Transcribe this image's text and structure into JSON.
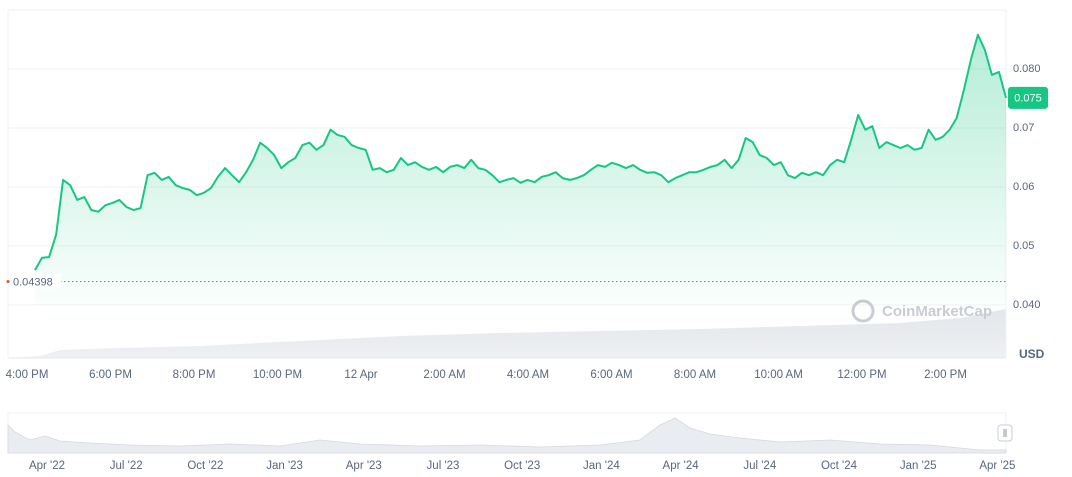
{
  "chart_data": {
    "type": "line",
    "x_labels": [
      "4:00 PM",
      "6:00 PM",
      "8:00 PM",
      "10:00 PM",
      "12 Apr",
      "2:00 AM",
      "4:00 AM",
      "6:00 AM",
      "8:00 AM",
      "10:00 AM",
      "12:00 PM",
      "2:00 PM"
    ],
    "series": [
      {
        "color": "#16c784",
        "values": [
          0.0459,
          0.048,
          0.0481,
          0.0519,
          0.0612,
          0.0603,
          0.0578,
          0.0583,
          0.0561,
          0.0558,
          0.0569,
          0.0573,
          0.0578,
          0.0566,
          0.0561,
          0.0564,
          0.062,
          0.0624,
          0.0612,
          0.0617,
          0.0603,
          0.0598,
          0.0595,
          0.0586,
          0.059,
          0.0598,
          0.0617,
          0.0632,
          0.062,
          0.0608,
          0.0625,
          0.0646,
          0.0675,
          0.0666,
          0.0654,
          0.0632,
          0.0642,
          0.0649,
          0.0671,
          0.0675,
          0.0663,
          0.0671,
          0.0697,
          0.0688,
          0.0685,
          0.0671,
          0.0666,
          0.0663,
          0.0629,
          0.0632,
          0.0625,
          0.0629,
          0.0649,
          0.0637,
          0.0642,
          0.0634,
          0.0629,
          0.0634,
          0.0625,
          0.0634,
          0.0637,
          0.0632,
          0.0646,
          0.0632,
          0.0629,
          0.062,
          0.0608,
          0.0612,
          0.0615,
          0.0607,
          0.0612,
          0.0608,
          0.0617,
          0.062,
          0.0625,
          0.0615,
          0.0612,
          0.0615,
          0.062,
          0.0629,
          0.0637,
          0.0634,
          0.0641,
          0.0637,
          0.0632,
          0.0637,
          0.0629,
          0.0624,
          0.0625,
          0.062,
          0.0608,
          0.0615,
          0.062,
          0.0625,
          0.0625,
          0.0629,
          0.0634,
          0.0637,
          0.0646,
          0.0632,
          0.0646,
          0.0683,
          0.0676,
          0.0654,
          0.0649,
          0.0637,
          0.0642,
          0.062,
          0.0615,
          0.0624,
          0.062,
          0.0625,
          0.062,
          0.0637,
          0.0646,
          0.0642,
          0.068,
          0.0722,
          0.0697,
          0.0703,
          0.0666,
          0.0676,
          0.0671,
          0.0666,
          0.0671,
          0.0663,
          0.0666,
          0.0697,
          0.068,
          0.0685,
          0.0697,
          0.0717,
          0.0764,
          0.0815,
          0.0858,
          0.0832,
          0.079,
          0.0795,
          0.0751
        ]
      }
    ],
    "ylim": [
      0.031,
      0.09
    ],
    "yticks": [
      {
        "value": 0.04,
        "label": "0.040"
      },
      0.05,
      0.06,
      0.07,
      {
        "value": 0.08,
        "label": "0.080"
      }
    ],
    "grid": true,
    "start_price": 0.04398,
    "last_price_label": "0.075",
    "currency": "USD",
    "watermark": "CoinMarketCap",
    "navigator_labels": [
      "Apr '22",
      "Jul '22",
      "Oct '22",
      "Jan '23",
      "Apr '23",
      "Jul '23",
      "Oct '23",
      "Jan '24",
      "Apr '24",
      "Jul '24",
      "Oct '24",
      "Jan '25",
      "Apr '25"
    ]
  }
}
